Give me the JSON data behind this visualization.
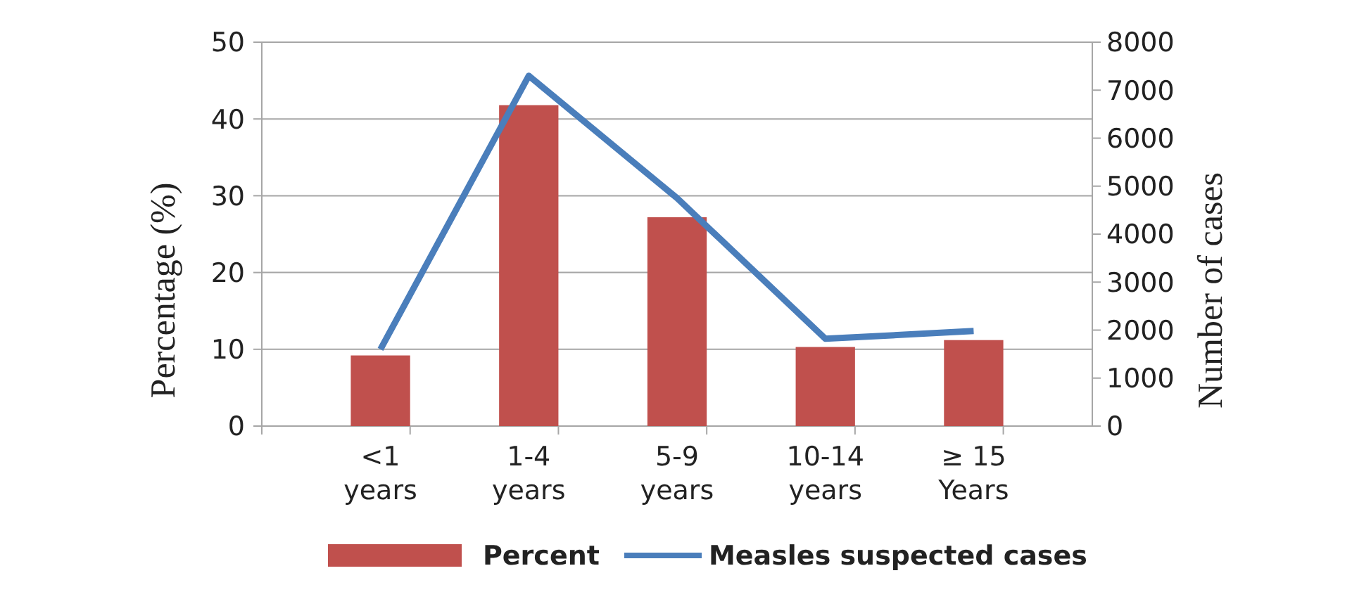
{
  "chart_data": {
    "type": "bar",
    "ylabel": "Percentage (%)",
    "y2label": "Number of cases",
    "categories": [
      "<1\nyears",
      "1-4\nyears",
      "5-9\nyears",
      "10-14\nyears",
      "≥ 15\nYears"
    ],
    "series": [
      {
        "name": "Percent",
        "color": "#c0504d",
        "values": [
          9.2,
          41.8,
          27.2,
          10.3,
          11.2
        ]
      },
      {
        "name": "Measles suspected cases",
        "type": "line",
        "axis": "y2",
        "color": "#4a7ebb",
        "values": [
          1600,
          7300,
          4750,
          1820,
          1980
        ]
      }
    ],
    "ylim": [
      0,
      50
    ],
    "yticks": [
      0,
      10,
      20,
      30,
      40,
      50
    ],
    "y2lim": [
      0,
      8000
    ],
    "y2ticks": [
      0,
      1000,
      2000,
      3000,
      4000,
      5000,
      6000,
      7000,
      8000
    ],
    "grid": "y",
    "legend": "bottom",
    "line_style": "solid"
  }
}
